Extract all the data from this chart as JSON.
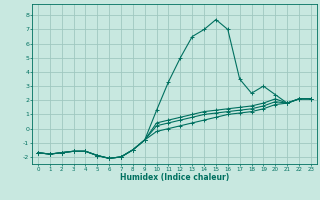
{
  "title": "",
  "xlabel": "Humidex (Indice chaleur)",
  "ylabel": "",
  "xlim": [
    -0.5,
    23.5
  ],
  "ylim": [
    -2.5,
    8.8
  ],
  "xticks": [
    0,
    1,
    2,
    3,
    4,
    5,
    6,
    7,
    8,
    9,
    10,
    11,
    12,
    13,
    14,
    15,
    16,
    17,
    18,
    19,
    20,
    21,
    22,
    23
  ],
  "yticks": [
    -2,
    -1,
    0,
    1,
    2,
    3,
    4,
    5,
    6,
    7,
    8
  ],
  "bg_color": "#c8e8e0",
  "grid_color": "#a0c8c0",
  "line_color": "#007060",
  "curves": [
    [
      0,
      1,
      2,
      3,
      4,
      5,
      6,
      7,
      8,
      9,
      10,
      11,
      12,
      13,
      14,
      15,
      16,
      17,
      18,
      19,
      20,
      21,
      22,
      23
    ],
    [
      -1.7,
      -1.8,
      -1.7,
      -1.6,
      -1.6,
      -1.9,
      -2.1,
      -2.0,
      -1.5,
      -0.8,
      1.3,
      3.3,
      5.0,
      6.5,
      7.0,
      7.7,
      7.0,
      3.5,
      2.5,
      3.0,
      2.4,
      1.8,
      2.1,
      2.1
    ],
    [
      -1.7,
      -1.8,
      -1.7,
      -1.6,
      -1.6,
      -1.9,
      -2.1,
      -2.0,
      -1.5,
      -0.8,
      0.4,
      0.6,
      0.8,
      1.0,
      1.2,
      1.3,
      1.4,
      1.5,
      1.6,
      1.8,
      2.1,
      1.8,
      2.1,
      2.1
    ],
    [
      -1.7,
      -1.8,
      -1.7,
      -1.6,
      -1.6,
      -1.9,
      -2.1,
      -2.0,
      -1.5,
      -0.8,
      0.2,
      0.4,
      0.6,
      0.8,
      1.0,
      1.1,
      1.2,
      1.3,
      1.4,
      1.6,
      1.9,
      1.8,
      2.1,
      2.1
    ],
    [
      -1.7,
      -1.8,
      -1.7,
      -1.6,
      -1.6,
      -1.9,
      -2.1,
      -2.0,
      -1.5,
      -0.8,
      -0.2,
      0.0,
      0.2,
      0.4,
      0.6,
      0.8,
      1.0,
      1.1,
      1.2,
      1.4,
      1.7,
      1.8,
      2.1,
      2.1
    ]
  ]
}
